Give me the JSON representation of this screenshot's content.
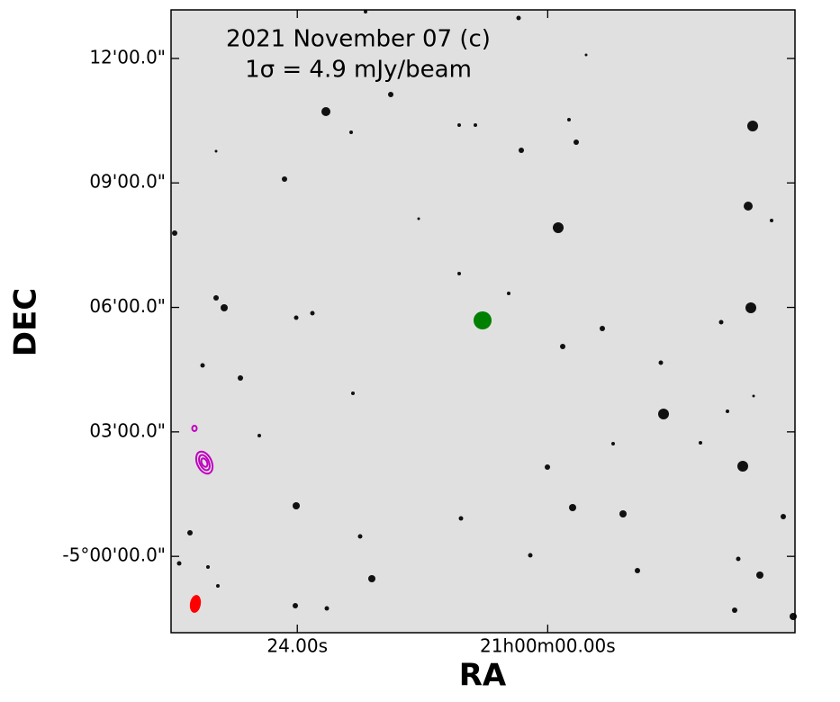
{
  "chart_data": {
    "type": "image",
    "title": "2021 November 07 (c)",
    "subtitle": "1σ = 4.9 mJy/beam",
    "xlabel": "RA",
    "ylabel": "DEC",
    "xlim": [
      36.1,
      -23.7
    ],
    "xticks": [
      {
        "value": 24,
        "label": "24.00s"
      },
      {
        "value": 0,
        "label": "21h00m00.00s"
      }
    ],
    "ylim": [
      -1.84,
      13.17
    ],
    "yticks": [
      {
        "value": 0,
        "label": "-5°00'00.0\""
      },
      {
        "value": 3,
        "label": "03'00.0\""
      },
      {
        "value": 6,
        "label": "06'00.0\""
      },
      {
        "value": 9,
        "label": "09'00.0\""
      },
      {
        "value": 12,
        "label": "12'00.0\""
      }
    ]
  }
}
